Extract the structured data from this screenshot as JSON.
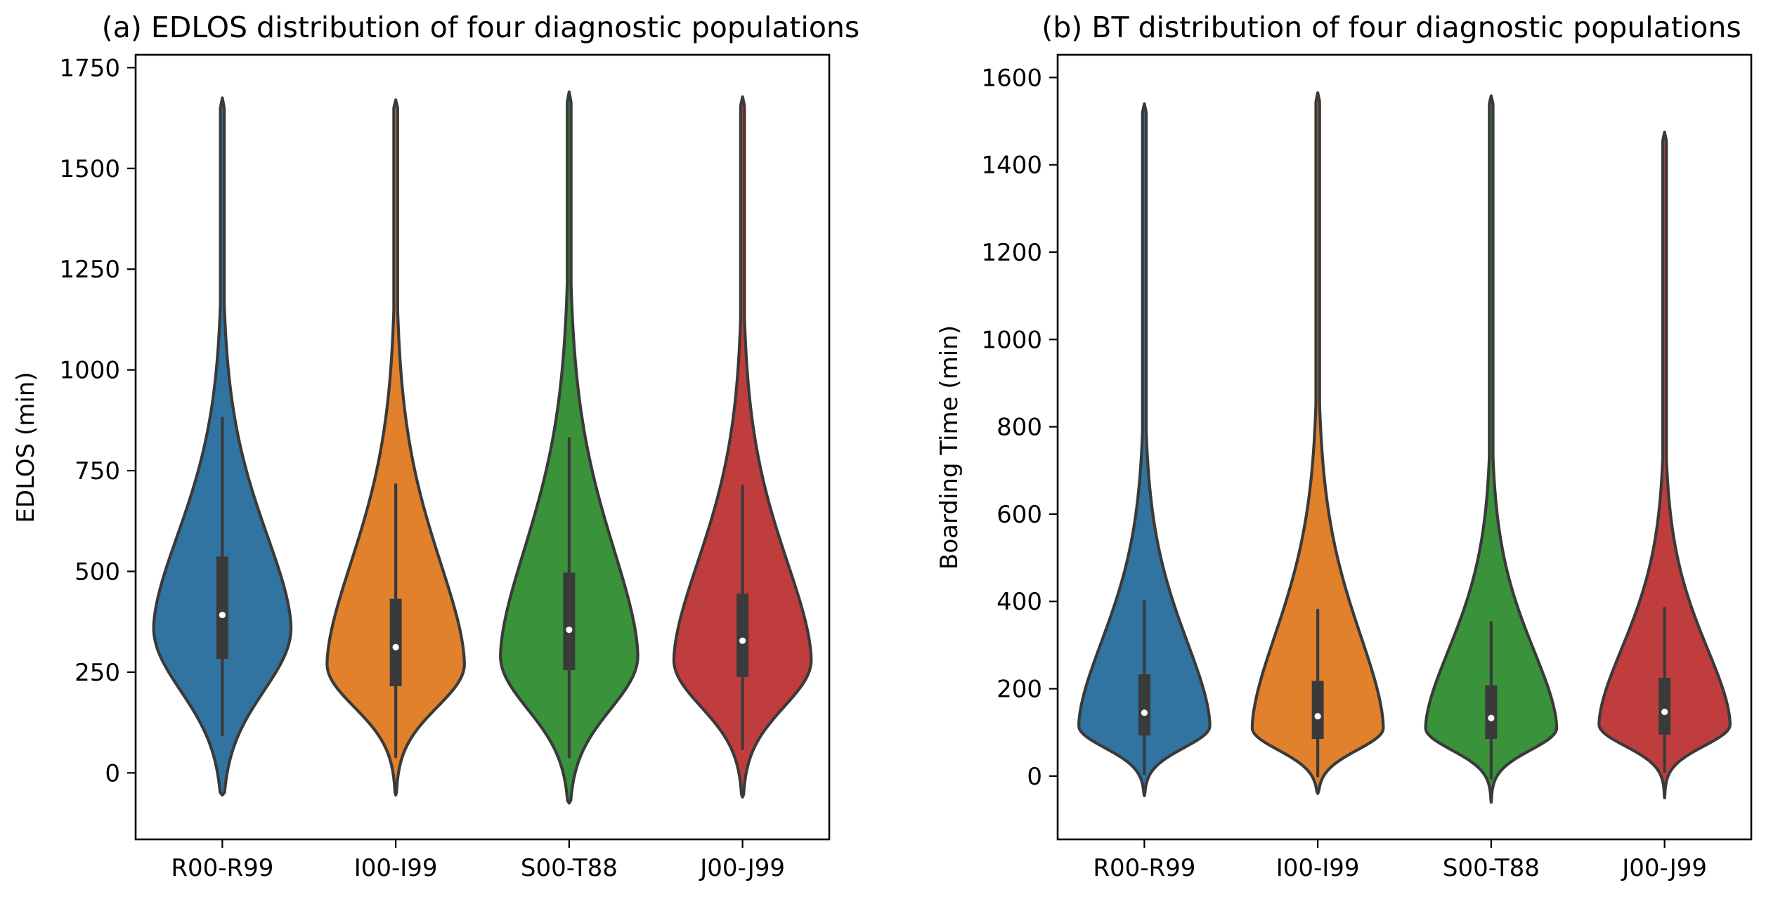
{
  "chart_data": [
    {
      "type": "violin",
      "title": "(a) EDLOS distribution of four diagnostic populations",
      "xlabel": "",
      "ylabel": "EDLOS (min)",
      "ylim": [
        -165,
        1782
      ],
      "yticks": [
        0,
        250,
        500,
        750,
        1000,
        1250,
        1500,
        1750
      ],
      "grid": false,
      "categories": [
        "R00-R99",
        "I00-I99",
        "S00-T88",
        "J00-J99"
      ],
      "series": [
        {
          "category": "R00-R99",
          "color": "#3274a1",
          "min": -55,
          "max": 1675,
          "q1": 283,
          "median": 392,
          "q3": 537,
          "whisker_low": 95,
          "whisker_high": 880,
          "mode": 360,
          "max_half_width": 0.44,
          "body_low": 110,
          "body_high": 890,
          "tail_low": 60,
          "tail_high": 1650
        },
        {
          "category": "I00-I99",
          "color": "#e1812c",
          "min": -55,
          "max": 1670,
          "q1": 215,
          "median": 312,
          "q3": 432,
          "whisker_low": 40,
          "whisker_high": 715,
          "mode": 270,
          "max_half_width": 0.44,
          "body_low": 100,
          "body_high": 850,
          "tail_low": 40,
          "tail_high": 1650
        },
        {
          "category": "S00-T88",
          "color": "#3a923a",
          "min": -75,
          "max": 1690,
          "q1": 255,
          "median": 355,
          "q3": 497,
          "whisker_low": 40,
          "whisker_high": 830,
          "mode": 290,
          "max_half_width": 0.44,
          "body_low": 80,
          "body_high": 900,
          "tail_low": 40,
          "tail_high": 1665
        },
        {
          "category": "J00-J99",
          "color": "#c03d3e",
          "min": -60,
          "max": 1678,
          "q1": 238,
          "median": 328,
          "q3": 445,
          "whisker_low": 60,
          "whisker_high": 712,
          "mode": 280,
          "max_half_width": 0.44,
          "body_low": 95,
          "body_high": 840,
          "tail_low": 50,
          "tail_high": 1655
        }
      ]
    },
    {
      "type": "violin",
      "title": "(b) BT distribution of four diagnostic populations",
      "xlabel": "",
      "ylabel": "Boarding Time (min)",
      "ylim": [
        -145,
        1652
      ],
      "yticks": [
        0,
        200,
        400,
        600,
        800,
        1000,
        1200,
        1400,
        1600
      ],
      "grid": false,
      "categories": [
        "R00-R99",
        "I00-I99",
        "S00-T88",
        "J00-J99"
      ],
      "series": [
        {
          "category": "R00-R99",
          "color": "#3274a1",
          "min": -45,
          "max": 1540,
          "q1": 93,
          "median": 145,
          "q3": 233,
          "whisker_low": 5,
          "whisker_high": 400,
          "mode": 115,
          "max_half_width": 0.42,
          "body_low": 35,
          "body_high": 560,
          "tail_low": 15,
          "tail_high": 1520
        },
        {
          "category": "I00-I99",
          "color": "#e1812c",
          "min": -40,
          "max": 1565,
          "q1": 85,
          "median": 137,
          "q3": 218,
          "whisker_low": 0,
          "whisker_high": 380,
          "mode": 110,
          "max_half_width": 0.42,
          "body_low": 30,
          "body_high": 600,
          "tail_low": 10,
          "tail_high": 1545
        },
        {
          "category": "S00-T88",
          "color": "#3a923a",
          "min": -60,
          "max": 1558,
          "q1": 85,
          "median": 133,
          "q3": 208,
          "whisker_low": -5,
          "whisker_high": 352,
          "mode": 110,
          "max_half_width": 0.42,
          "body_low": 30,
          "body_high": 520,
          "tail_low": 10,
          "tail_high": 1540
        },
        {
          "category": "J00-J99",
          "color": "#c03d3e",
          "min": -50,
          "max": 1475,
          "q1": 95,
          "median": 147,
          "q3": 225,
          "whisker_low": 10,
          "whisker_high": 385,
          "mode": 118,
          "max_half_width": 0.42,
          "body_low": 40,
          "body_high": 520,
          "tail_low": 15,
          "tail_high": 1455
        }
      ]
    }
  ]
}
